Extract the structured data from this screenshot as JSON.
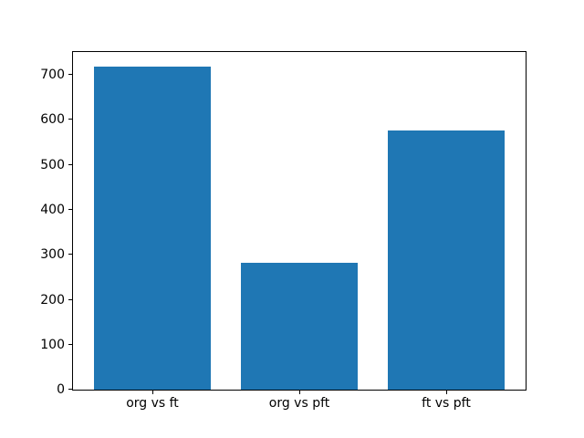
{
  "chart_data": {
    "type": "bar",
    "categories": [
      "org vs ft",
      "org vs pft",
      "ft vs pft"
    ],
    "values": [
      719,
      283,
      577
    ],
    "title": "",
    "xlabel": "",
    "ylabel": "",
    "yticks": [
      0,
      100,
      200,
      300,
      400,
      500,
      600,
      700
    ],
    "ylim": [
      0,
      751
    ],
    "xlim": [
      -0.54,
      2.54
    ],
    "bar_color": "#1f77b4",
    "bar_width_fraction": 0.8,
    "grid": false,
    "legend": null,
    "axis_color": "#000000",
    "background_color": "#ffffff"
  }
}
